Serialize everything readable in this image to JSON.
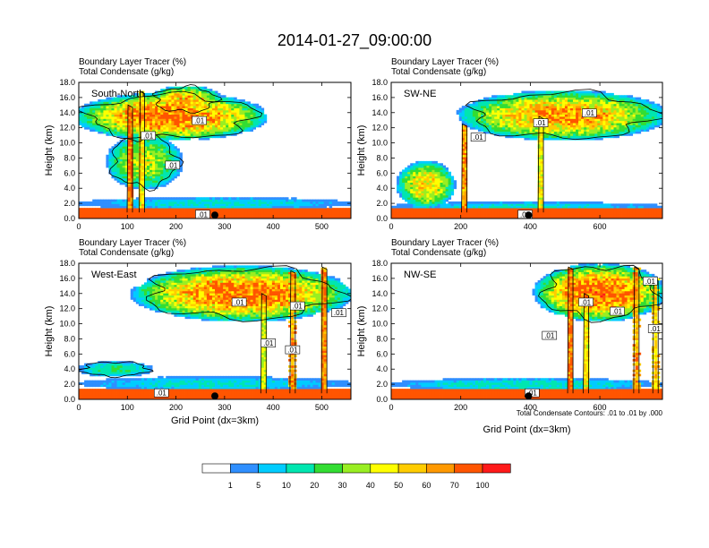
{
  "title": "2014-01-27_09:00:00",
  "colors": {
    "background": "#ffffff",
    "ground": "#dd1111",
    "contour": "#000000",
    "marker": "#000000"
  },
  "colorbar": {
    "levels": [
      "1",
      "5",
      "10",
      "20",
      "30",
      "40",
      "50",
      "60",
      "70",
      "100"
    ],
    "colors": [
      "#ffffff",
      "#2f8fff",
      "#00ccff",
      "#00e6b0",
      "#33dd33",
      "#99ee22",
      "#ffff00",
      "#ffcc00",
      "#ff9900",
      "#ff5500",
      "#ff1a1a"
    ]
  },
  "footnote": "Total Condensate Contours: .01 to .01 by .000",
  "chart_data": [
    {
      "type": "heatmap",
      "panel": "top-left",
      "label": "South-North",
      "subtitle1": "Boundary Layer Tracer   (%)",
      "subtitle2": "Total Condensate   (g/kg)",
      "ylabel": "Height (km)",
      "xlabel": "",
      "xlim": [
        0,
        560
      ],
      "ylim": [
        0,
        18
      ],
      "xticks": [
        "0",
        "100",
        "200",
        "300",
        "400",
        "500"
      ],
      "xtick_values": [
        0,
        100,
        200,
        300,
        400,
        500
      ],
      "yticks": [
        "0.0",
        "2.0",
        "4.0",
        "6.0",
        "8.0",
        "10.0",
        "12.0",
        "14.0",
        "16.0",
        "18.0"
      ],
      "marker_x": 280,
      "contour_labels": [
        {
          "text": ".01",
          "x": 248,
          "y": 12.9
        },
        {
          "text": ".01",
          "x": 143,
          "y": 10.9
        },
        {
          "text": ".01",
          "x": 193,
          "y": 7.0
        },
        {
          "text": ".01",
          "x": 255,
          "y": 0.5
        }
      ],
      "clouds": [
        {
          "x": [
            0,
            380
          ],
          "y": [
            10.5,
            16.5
          ],
          "peak": 75
        },
        {
          "x": [
            150,
            290
          ],
          "y": [
            14,
            17.5
          ],
          "peak": 60
        },
        {
          "x": [
            60,
            210
          ],
          "y": [
            4,
            11
          ],
          "peak": 40
        },
        {
          "x": [
            0,
            560
          ],
          "y": [
            1.2,
            2.8
          ],
          "peak": 12
        }
      ],
      "plumes": [
        {
          "x": 105,
          "top": 15,
          "peak": 80
        },
        {
          "x": 130,
          "top": 16.8,
          "peak": 55
        }
      ]
    },
    {
      "type": "heatmap",
      "panel": "top-right",
      "label": "SW-NE",
      "subtitle1": "Boundary Layer Tracer   (%)",
      "subtitle2": "Total Condensate   (g/kg)",
      "ylabel": "Height (km)",
      "xlabel": "",
      "xlim": [
        0,
        780
      ],
      "ylim": [
        0,
        18
      ],
      "xticks": [
        "0",
        "200",
        "400",
        "600"
      ],
      "xtick_values": [
        0,
        200,
        400,
        600
      ],
      "yticks": [
        "0.0",
        "2.0",
        "4.0",
        "6.0",
        "8.0",
        "10.0",
        "12.0",
        "14.0",
        "16.0",
        "18.0"
      ],
      "marker_x": 395,
      "contour_labels": [
        {
          "text": ".01",
          "x": 430,
          "y": 12.6
        },
        {
          "text": ".01",
          "x": 250,
          "y": 10.7
        },
        {
          "text": ".01",
          "x": 570,
          "y": 13.9
        },
        {
          "text": ".01",
          "x": 385,
          "y": 0.5
        }
      ],
      "clouds": [
        {
          "x": [
            205,
            780
          ],
          "y": [
            10.5,
            16.8
          ],
          "peak": 65
        },
        {
          "x": [
            20,
            180
          ],
          "y": [
            1.5,
            7.5
          ],
          "peak": 55
        },
        {
          "x": [
            0,
            780
          ],
          "y": [
            1.0,
            2.2
          ],
          "peak": 12
        }
      ],
      "plumes": [
        {
          "x": 210,
          "top": 12.5,
          "peak": 70
        },
        {
          "x": 430,
          "top": 13.5,
          "peak": 50
        }
      ]
    },
    {
      "type": "heatmap",
      "panel": "bottom-left",
      "label": "West-East",
      "subtitle1": "Boundary Layer Tracer   (%)",
      "subtitle2": "Total Condensate   (g/kg)",
      "ylabel": "Height (km)",
      "xlabel": "Grid Point (dx=3km)",
      "xlim": [
        0,
        560
      ],
      "ylim": [
        0,
        18
      ],
      "xticks": [
        "0",
        "100",
        "200",
        "300",
        "400",
        "500"
      ],
      "xtick_values": [
        0,
        100,
        200,
        300,
        400,
        500
      ],
      "yticks": [
        "0.0",
        "2.0",
        "4.0",
        "6.0",
        "8.0",
        "10.0",
        "12.0",
        "14.0",
        "16.0",
        "18.0"
      ],
      "marker_x": 280,
      "contour_labels": [
        {
          "text": ".01",
          "x": 330,
          "y": 12.8
        },
        {
          "text": ".01",
          "x": 450,
          "y": 12.3
        },
        {
          "text": ".01",
          "x": 535,
          "y": 11.4
        },
        {
          "text": ".01",
          "x": 390,
          "y": 7.4
        },
        {
          "text": ".01",
          "x": 440,
          "y": 6.5
        },
        {
          "text": ".01",
          "x": 170,
          "y": 0.8
        }
      ],
      "clouds": [
        {
          "x": [
            120,
            555
          ],
          "y": [
            10.5,
            17.5
          ],
          "peak": 75
        },
        {
          "x": [
            0,
            150
          ],
          "y": [
            3,
            5
          ],
          "peak": 20
        },
        {
          "x": [
            0,
            560
          ],
          "y": [
            1.2,
            3
          ],
          "peak": 12
        }
      ],
      "plumes": [
        {
          "x": 440,
          "top": 17,
          "peak": 70
        },
        {
          "x": 505,
          "top": 17.5,
          "peak": 75
        },
        {
          "x": 380,
          "top": 14,
          "peak": 45
        }
      ]
    },
    {
      "type": "heatmap",
      "panel": "bottom-right",
      "label": "NW-SE",
      "subtitle1": "Boundary Layer Tracer   (%)",
      "subtitle2": "Total Condensate   (g/kg)",
      "ylabel": "Height (km)",
      "xlabel": "Grid Point (dx=3km)",
      "xlim": [
        0,
        780
      ],
      "ylim": [
        0,
        18
      ],
      "xticks": [
        "0",
        "200",
        "400",
        "600"
      ],
      "xtick_values": [
        0,
        200,
        400,
        600
      ],
      "yticks": [
        "0.0",
        "2.0",
        "4.0",
        "6.0",
        "8.0",
        "10.0",
        "12.0",
        "14.0",
        "16.0",
        "18.0"
      ],
      "marker_x": 395,
      "contour_labels": [
        {
          "text": ".01",
          "x": 745,
          "y": 15.6
        },
        {
          "text": ".01",
          "x": 560,
          "y": 12.8
        },
        {
          "text": ".01",
          "x": 650,
          "y": 11.6
        },
        {
          "text": ".01",
          "x": 760,
          "y": 9.3
        },
        {
          "text": ".01",
          "x": 455,
          "y": 8.4
        },
        {
          "text": ".01",
          "x": 405,
          "y": 0.8
        }
      ],
      "clouds": [
        {
          "x": [
            420,
            780
          ],
          "y": [
            10.5,
            17.8
          ],
          "peak": 80
        },
        {
          "x": [
            0,
            780
          ],
          "y": [
            1.2,
            2.8
          ],
          "peak": 14
        }
      ],
      "plumes": [
        {
          "x": 515,
          "top": 17.5,
          "peak": 80
        },
        {
          "x": 560,
          "top": 14,
          "peak": 55
        },
        {
          "x": 705,
          "top": 17.5,
          "peak": 70
        },
        {
          "x": 760,
          "top": 16,
          "peak": 60
        }
      ]
    }
  ]
}
